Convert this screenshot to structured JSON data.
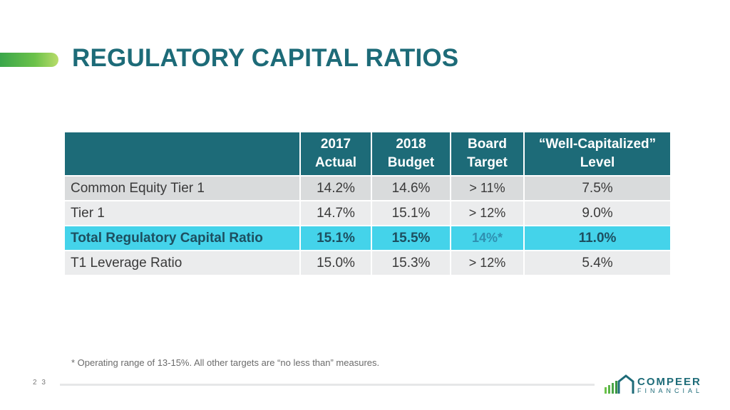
{
  "slide": {
    "title": "REGULATORY CAPITAL RATIOS",
    "page_number": "2 3",
    "footnote": "* Operating range of 13-15%.  All other targets are “no less than” measures."
  },
  "table": {
    "headers": [
      {
        "line1": "",
        "line2": ""
      },
      {
        "line1": "2017",
        "line2": "Actual"
      },
      {
        "line1": "2018",
        "line2": "Budget"
      },
      {
        "line1": "Board",
        "line2": "Target"
      },
      {
        "line1": "“Well-Capitalized”",
        "line2": "Level"
      }
    ],
    "rows": [
      {
        "label": "Common Equity Tier 1",
        "actual_2017": "14.2%",
        "budget_2018": "14.6%",
        "board_target": "> 11%",
        "well_capitalized": "7.5%"
      },
      {
        "label": "Tier 1",
        "actual_2017": "14.7%",
        "budget_2018": "15.1%",
        "board_target": "> 12%",
        "well_capitalized": "9.0%"
      },
      {
        "label": "Total Regulatory Capital Ratio",
        "actual_2017": "15.1%",
        "budget_2018": "15.5%",
        "board_target": "14%*",
        "well_capitalized": "11.0%"
      },
      {
        "label": "T1 Leverage Ratio",
        "actual_2017": "15.0%",
        "budget_2018": "15.3%",
        "board_target": "> 12%",
        "well_capitalized": "5.4%"
      }
    ]
  },
  "logo": {
    "name": "COMPEER",
    "subtitle": "FINANCIAL",
    "icon": "house-bars-logo-icon"
  },
  "colors": {
    "title": "#1d6b78",
    "header_bg": "#1d6b78",
    "highlight_row": "#44d3ea",
    "accent_green": "#6cc24a"
  }
}
